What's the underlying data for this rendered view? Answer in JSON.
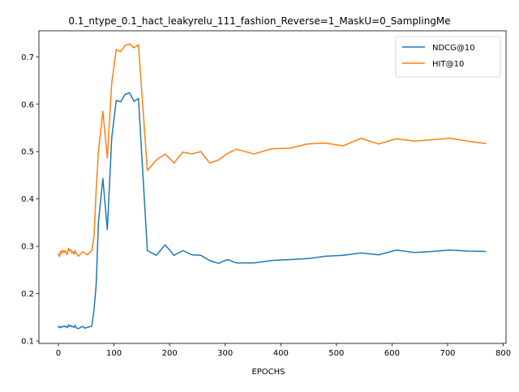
{
  "chart_data": {
    "type": "line",
    "title": "0.1_ntype_0.1_hact_leakyrelu_111_fashion_Reverse=1_MaskU=0_SamplingMe",
    "xlabel": "EPOCHS",
    "ylabel": "",
    "xlim": [
      -35,
      805
    ],
    "ylim": [
      0.095,
      0.755
    ],
    "xticks": [
      0,
      100,
      200,
      300,
      400,
      500,
      600,
      700,
      800
    ],
    "yticks": [
      0.1,
      0.2,
      0.3,
      0.4,
      0.5,
      0.6,
      0.7
    ],
    "xtick_labels": [
      "0",
      "100",
      "200",
      "300",
      "400",
      "500",
      "600",
      "700",
      "800"
    ],
    "ytick_labels": [
      "0.1",
      "0.2",
      "0.3",
      "0.4",
      "0.5",
      "0.6",
      "0.7"
    ],
    "grid": false,
    "legend_position": "top-right",
    "series": [
      {
        "name": "NDCG@10",
        "color": "#1f77b4",
        "x": [
          0,
          2,
          4,
          6,
          8,
          10,
          12,
          14,
          16,
          18,
          20,
          22,
          24,
          26,
          28,
          30,
          32,
          36,
          40,
          44,
          48,
          52,
          56,
          60,
          64,
          68,
          72,
          80,
          88,
          96,
          104,
          112,
          120,
          128,
          136,
          144,
          160,
          176,
          192,
          208,
          224,
          240,
          256,
          272,
          288,
          304,
          320,
          352,
          384,
          416,
          448,
          480,
          512,
          544,
          576,
          608,
          640,
          672,
          704,
          736,
          768
        ],
        "y": [
          0.131,
          0.128,
          0.131,
          0.129,
          0.13,
          0.132,
          0.13,
          0.131,
          0.128,
          0.134,
          0.131,
          0.133,
          0.13,
          0.131,
          0.129,
          0.133,
          0.128,
          0.126,
          0.129,
          0.131,
          0.127,
          0.129,
          0.13,
          0.131,
          0.165,
          0.22,
          0.35,
          0.443,
          0.335,
          0.53,
          0.608,
          0.605,
          0.621,
          0.624,
          0.606,
          0.612,
          0.291,
          0.281,
          0.303,
          0.281,
          0.291,
          0.282,
          0.281,
          0.27,
          0.264,
          0.272,
          0.265,
          0.265,
          0.27,
          0.272,
          0.274,
          0.279,
          0.281,
          0.286,
          0.282,
          0.292,
          0.287,
          0.289,
          0.292,
          0.29,
          0.289
        ]
      },
      {
        "name": "HIT@10",
        "color": "#ff7f0e",
        "x": [
          0,
          2,
          4,
          6,
          8,
          10,
          12,
          14,
          16,
          18,
          20,
          22,
          24,
          26,
          28,
          30,
          32,
          36,
          40,
          44,
          48,
          52,
          56,
          60,
          64,
          68,
          72,
          80,
          88,
          96,
          104,
          112,
          120,
          128,
          136,
          144,
          160,
          176,
          192,
          208,
          224,
          240,
          256,
          272,
          288,
          304,
          320,
          352,
          384,
          416,
          448,
          480,
          512,
          544,
          576,
          608,
          640,
          672,
          704,
          736,
          768
        ],
        "y": [
          0.284,
          0.278,
          0.29,
          0.285,
          0.292,
          0.287,
          0.291,
          0.286,
          0.283,
          0.296,
          0.29,
          0.293,
          0.286,
          0.289,
          0.283,
          0.291,
          0.285,
          0.279,
          0.284,
          0.289,
          0.285,
          0.282,
          0.287,
          0.29,
          0.32,
          0.42,
          0.5,
          0.585,
          0.486,
          0.645,
          0.715,
          0.711,
          0.724,
          0.727,
          0.719,
          0.725,
          0.46,
          0.482,
          0.495,
          0.476,
          0.499,
          0.495,
          0.5,
          0.476,
          0.482,
          0.496,
          0.505,
          0.495,
          0.506,
          0.507,
          0.516,
          0.518,
          0.512,
          0.528,
          0.516,
          0.527,
          0.522,
          0.525,
          0.528,
          0.522,
          0.517
        ]
      }
    ]
  }
}
